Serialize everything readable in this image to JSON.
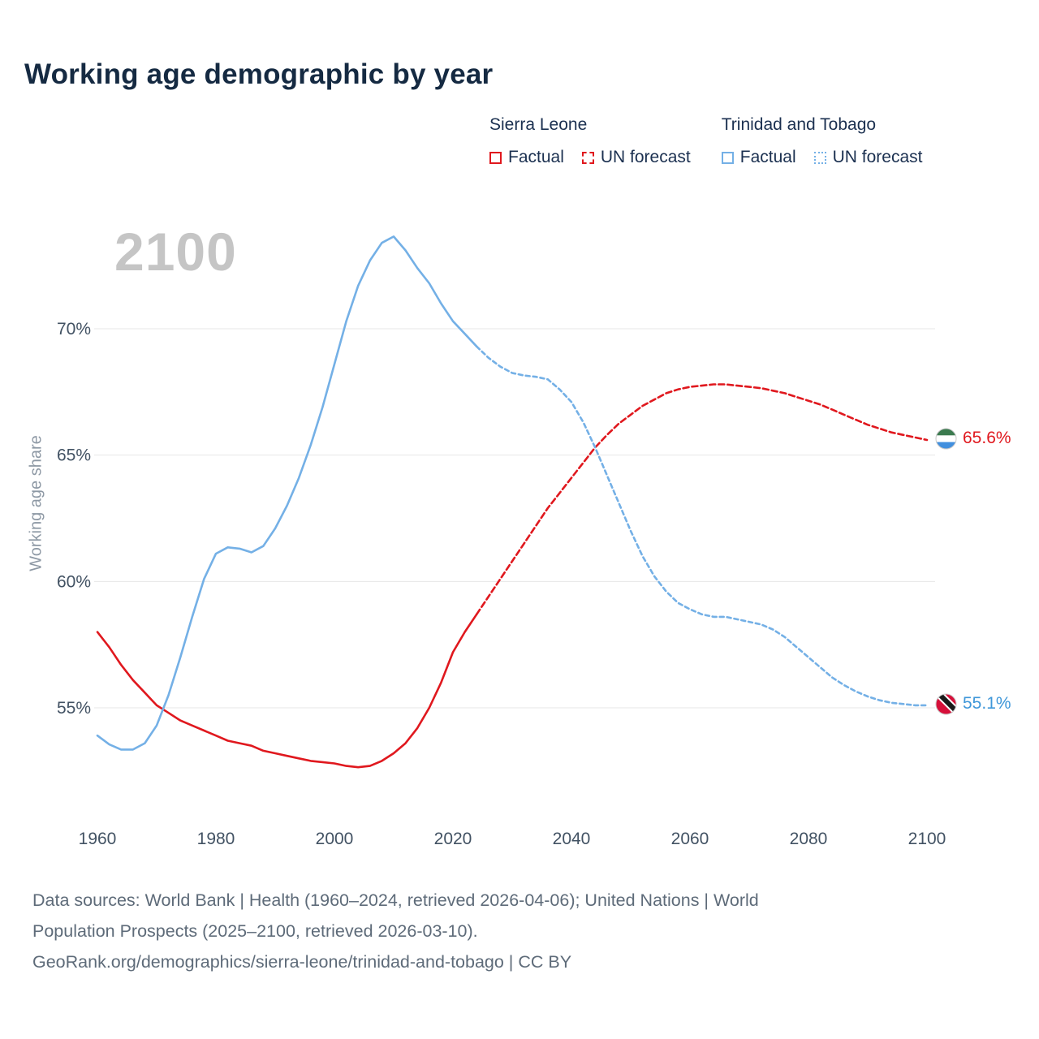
{
  "page": {
    "title": "Working age demographic by year"
  },
  "legend": {
    "groups": [
      {
        "title": "Sierra Leone",
        "items": [
          {
            "label": "Factual",
            "style": "solid"
          },
          {
            "label": "UN forecast",
            "style": "dashed"
          }
        ]
      },
      {
        "title": "Trinidad and Tobago",
        "items": [
          {
            "label": "Factual",
            "style": "solid"
          },
          {
            "label": "UN forecast",
            "style": "dotted"
          }
        ]
      }
    ]
  },
  "footer": {
    "lines": [
      "Data sources: World Bank | Health (1960–2024, retrieved 2026-04-06); United Nations | World",
      "Population Prospects (2025–2100, retrieved 2026-03-10).",
      "GeoRank.org/demographics/sierra-leone/trinidad-and-tobago | CC BY"
    ]
  },
  "chart_data": {
    "type": "line",
    "title": "Working age demographic by year",
    "xlabel": "",
    "ylabel": "Working age share",
    "watermark": "2100",
    "xlim": [
      1960,
      2100
    ],
    "ylim": [
      52,
      74.5
    ],
    "grid": "horizontal",
    "legend_position": "top-right",
    "yticks": [
      {
        "value": 55,
        "label": "55%"
      },
      {
        "value": 60,
        "label": "60%"
      },
      {
        "value": 65,
        "label": "65%"
      },
      {
        "value": 70,
        "label": "70%"
      }
    ],
    "xticks": [
      1960,
      1980,
      2000,
      2020,
      2040,
      2060,
      2080,
      2100
    ],
    "series": [
      {
        "name": "sierra-leone",
        "label": "Sierra Leone",
        "color": "#e0181e",
        "dash": "7,4",
        "factual": [
          [
            1960,
            58.0
          ],
          [
            1962,
            57.4
          ],
          [
            1964,
            56.7
          ],
          [
            1966,
            56.1
          ],
          [
            1968,
            55.6
          ],
          [
            1970,
            55.1
          ],
          [
            1972,
            54.8
          ],
          [
            1974,
            54.5
          ],
          [
            1976,
            54.3
          ],
          [
            1978,
            54.1
          ],
          [
            1980,
            53.9
          ],
          [
            1982,
            53.7
          ],
          [
            1984,
            53.6
          ],
          [
            1986,
            53.5
          ],
          [
            1988,
            53.3
          ],
          [
            1990,
            53.2
          ],
          [
            1992,
            53.1
          ],
          [
            1994,
            53.0
          ],
          [
            1996,
            52.9
          ],
          [
            1998,
            52.85
          ],
          [
            2000,
            52.8
          ],
          [
            2002,
            52.7
          ],
          [
            2004,
            52.65
          ],
          [
            2006,
            52.7
          ],
          [
            2008,
            52.9
          ],
          [
            2010,
            53.2
          ],
          [
            2012,
            53.6
          ],
          [
            2014,
            54.2
          ],
          [
            2016,
            55.0
          ],
          [
            2018,
            56.0
          ],
          [
            2020,
            57.2
          ],
          [
            2022,
            58.0
          ],
          [
            2024,
            58.7
          ]
        ],
        "forecast": [
          [
            2024,
            58.7
          ],
          [
            2026,
            59.4
          ],
          [
            2028,
            60.1
          ],
          [
            2030,
            60.8
          ],
          [
            2032,
            61.5
          ],
          [
            2034,
            62.2
          ],
          [
            2036,
            62.9
          ],
          [
            2038,
            63.5
          ],
          [
            2040,
            64.1
          ],
          [
            2042,
            64.7
          ],
          [
            2044,
            65.3
          ],
          [
            2046,
            65.8
          ],
          [
            2048,
            66.25
          ],
          [
            2050,
            66.6
          ],
          [
            2052,
            66.95
          ],
          [
            2054,
            67.2
          ],
          [
            2056,
            67.45
          ],
          [
            2058,
            67.6
          ],
          [
            2060,
            67.7
          ],
          [
            2062,
            67.75
          ],
          [
            2064,
            67.8
          ],
          [
            2066,
            67.8
          ],
          [
            2068,
            67.75
          ],
          [
            2070,
            67.7
          ],
          [
            2072,
            67.65
          ],
          [
            2074,
            67.55
          ],
          [
            2076,
            67.45
          ],
          [
            2078,
            67.3
          ],
          [
            2080,
            67.15
          ],
          [
            2082,
            67.0
          ],
          [
            2084,
            66.8
          ],
          [
            2086,
            66.6
          ],
          [
            2088,
            66.4
          ],
          [
            2090,
            66.2
          ],
          [
            2092,
            66.05
          ],
          [
            2094,
            65.9
          ],
          [
            2096,
            65.8
          ],
          [
            2098,
            65.7
          ],
          [
            2100,
            65.6
          ]
        ]
      },
      {
        "name": "trinidad-and-tobago",
        "label": "Trinidad and Tobago",
        "color": "#74b0e6",
        "dash": "5,4",
        "factual": [
          [
            1960,
            53.9
          ],
          [
            1962,
            53.55
          ],
          [
            1964,
            53.35
          ],
          [
            1966,
            53.35
          ],
          [
            1968,
            53.6
          ],
          [
            1970,
            54.3
          ],
          [
            1972,
            55.5
          ],
          [
            1974,
            57.0
          ],
          [
            1976,
            58.6
          ],
          [
            1978,
            60.1
          ],
          [
            1980,
            61.1
          ],
          [
            1982,
            61.35
          ],
          [
            1984,
            61.3
          ],
          [
            1986,
            61.15
          ],
          [
            1988,
            61.4
          ],
          [
            1990,
            62.1
          ],
          [
            1992,
            63.0
          ],
          [
            1994,
            64.1
          ],
          [
            1996,
            65.4
          ],
          [
            1998,
            66.9
          ],
          [
            2000,
            68.6
          ],
          [
            2002,
            70.3
          ],
          [
            2004,
            71.7
          ],
          [
            2006,
            72.7
          ],
          [
            2008,
            73.4
          ],
          [
            2010,
            73.65
          ],
          [
            2012,
            73.1
          ],
          [
            2014,
            72.4
          ],
          [
            2016,
            71.8
          ],
          [
            2018,
            71.0
          ],
          [
            2020,
            70.3
          ],
          [
            2022,
            69.8
          ],
          [
            2024,
            69.3
          ]
        ],
        "forecast": [
          [
            2024,
            69.3
          ],
          [
            2026,
            68.85
          ],
          [
            2028,
            68.5
          ],
          [
            2030,
            68.25
          ],
          [
            2032,
            68.15
          ],
          [
            2034,
            68.1
          ],
          [
            2036,
            68.0
          ],
          [
            2038,
            67.6
          ],
          [
            2040,
            67.1
          ],
          [
            2042,
            66.3
          ],
          [
            2044,
            65.3
          ],
          [
            2046,
            64.2
          ],
          [
            2048,
            63.1
          ],
          [
            2050,
            62.0
          ],
          [
            2052,
            61.0
          ],
          [
            2054,
            60.2
          ],
          [
            2056,
            59.6
          ],
          [
            2058,
            59.15
          ],
          [
            2060,
            58.9
          ],
          [
            2062,
            58.7
          ],
          [
            2064,
            58.6
          ],
          [
            2066,
            58.6
          ],
          [
            2068,
            58.5
          ],
          [
            2070,
            58.4
          ],
          [
            2072,
            58.3
          ],
          [
            2074,
            58.1
          ],
          [
            2076,
            57.8
          ],
          [
            2078,
            57.4
          ],
          [
            2080,
            57.0
          ],
          [
            2082,
            56.6
          ],
          [
            2084,
            56.2
          ],
          [
            2086,
            55.9
          ],
          [
            2088,
            55.65
          ],
          [
            2090,
            55.45
          ],
          [
            2092,
            55.3
          ],
          [
            2094,
            55.2
          ],
          [
            2096,
            55.15
          ],
          [
            2098,
            55.1
          ],
          [
            2100,
            55.1
          ]
        ]
      }
    ],
    "end_labels": [
      {
        "series": "Sierra Leone",
        "value": 65.6,
        "text": "65.6%",
        "text_color": "#e0181e",
        "icon": "sierra-leone-flag-icon"
      },
      {
        "series": "Trinidad and Tobago",
        "value": 55.1,
        "text": "55.1%",
        "text_color": "#3f97d9",
        "icon": "trinidad-and-tobago-flag-icon"
      }
    ]
  }
}
